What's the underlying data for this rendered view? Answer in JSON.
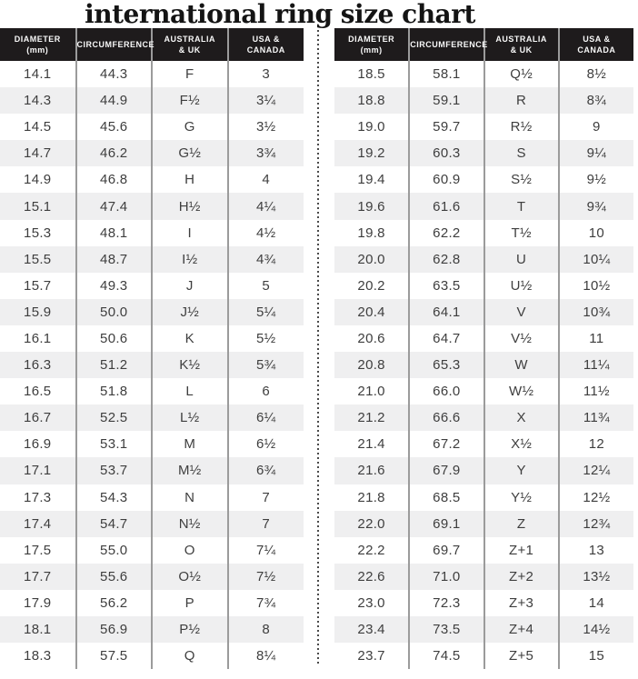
{
  "title": "international ring size chart",
  "colors": {
    "header_bg": "#1e1b1c",
    "header_text": "#f8f8f8",
    "alt_row_bg": "#efeff0",
    "cell_text": "#3e3e3e",
    "column_divider": "#9b9b9b",
    "dotted_divider": "#4a4a4a"
  },
  "chart_data": [
    {
      "type": "table",
      "title": "international ring size chart (left panel)",
      "columns": [
        {
          "line1": "DIAMETER",
          "line2": "(mm)"
        },
        {
          "line1": "CIRCUMFERENCE",
          "line2": ""
        },
        {
          "line1": "AUSTRALIA",
          "line2": "& UK"
        },
        {
          "line1": "USA &",
          "line2": "CANADA"
        }
      ],
      "rows": [
        [
          "14.1",
          "44.3",
          "F",
          "3"
        ],
        [
          "14.3",
          "44.9",
          "F½",
          "3¼"
        ],
        [
          "14.5",
          "45.6",
          "G",
          "3½"
        ],
        [
          "14.7",
          "46.2",
          "G½",
          "3¾"
        ],
        [
          "14.9",
          "46.8",
          "H",
          "4"
        ],
        [
          "15.1",
          "47.4",
          "H½",
          "4¼"
        ],
        [
          "15.3",
          "48.1",
          "I",
          "4½"
        ],
        [
          "15.5",
          "48.7",
          "I½",
          "4¾"
        ],
        [
          "15.7",
          "49.3",
          "J",
          "5"
        ],
        [
          "15.9",
          "50.0",
          "J½",
          "5¼"
        ],
        [
          "16.1",
          "50.6",
          "K",
          "5½"
        ],
        [
          "16.3",
          "51.2",
          "K½",
          "5¾"
        ],
        [
          "16.5",
          "51.8",
          "L",
          "6"
        ],
        [
          "16.7",
          "52.5",
          "L½",
          "6¼"
        ],
        [
          "16.9",
          "53.1",
          "M",
          "6½"
        ],
        [
          "17.1",
          "53.7",
          "M½",
          "6¾"
        ],
        [
          "17.3",
          "54.3",
          "N",
          "7"
        ],
        [
          "17.4",
          "54.7",
          "N½",
          "7"
        ],
        [
          "17.5",
          "55.0",
          "O",
          "7¼"
        ],
        [
          "17.7",
          "55.6",
          "O½",
          "7½"
        ],
        [
          "17.9",
          "56.2",
          "P",
          "7¾"
        ],
        [
          "18.1",
          "56.9",
          "P½",
          "8"
        ],
        [
          "18.3",
          "57.5",
          "Q",
          "8¼"
        ]
      ]
    },
    {
      "type": "table",
      "title": "international ring size chart (right panel)",
      "columns": [
        {
          "line1": "DIAMETER",
          "line2": "(mm)"
        },
        {
          "line1": "CIRCUMFERENCE",
          "line2": ""
        },
        {
          "line1": "AUSTRALIA",
          "line2": "& UK"
        },
        {
          "line1": "USA &",
          "line2": "CANADA"
        }
      ],
      "rows": [
        [
          "18.5",
          "58.1",
          "Q½",
          "8½"
        ],
        [
          "18.8",
          "59.1",
          "R",
          "8¾"
        ],
        [
          "19.0",
          "59.7",
          "R½",
          "9"
        ],
        [
          "19.2",
          "60.3",
          "S",
          "9¼"
        ],
        [
          "19.4",
          "60.9",
          "S½",
          "9½"
        ],
        [
          "19.6",
          "61.6",
          "T",
          "9¾"
        ],
        [
          "19.8",
          "62.2",
          "T½",
          "10"
        ],
        [
          "20.0",
          "62.8",
          "U",
          "10¼"
        ],
        [
          "20.2",
          "63.5",
          "U½",
          "10½"
        ],
        [
          "20.4",
          "64.1",
          "V",
          "10¾"
        ],
        [
          "20.6",
          "64.7",
          "V½",
          "11"
        ],
        [
          "20.8",
          "65.3",
          "W",
          "11¼"
        ],
        [
          "21.0",
          "66.0",
          "W½",
          "11½"
        ],
        [
          "21.2",
          "66.6",
          "X",
          "11¾"
        ],
        [
          "21.4",
          "67.2",
          "X½",
          "12"
        ],
        [
          "21.6",
          "67.9",
          "Y",
          "12¼"
        ],
        [
          "21.8",
          "68.5",
          "Y½",
          "12½"
        ],
        [
          "22.0",
          "69.1",
          "Z",
          "12¾"
        ],
        [
          "22.2",
          "69.7",
          "Z+1",
          "13"
        ],
        [
          "22.6",
          "71.0",
          "Z+2",
          "13½"
        ],
        [
          "23.0",
          "72.3",
          "Z+3",
          "14"
        ],
        [
          "23.4",
          "73.5",
          "Z+4",
          "14½"
        ],
        [
          "23.7",
          "74.5",
          "Z+5",
          "15"
        ]
      ]
    }
  ]
}
